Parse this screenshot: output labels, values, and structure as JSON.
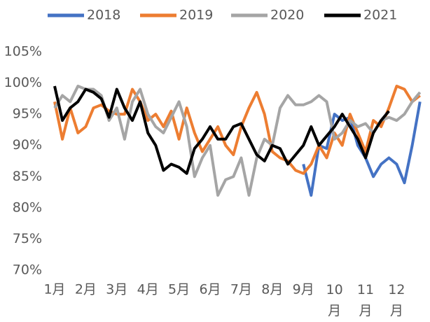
{
  "chart_data": {
    "type": "line",
    "categories": [
      "1月",
      null,
      null,
      null,
      "2月",
      null,
      null,
      null,
      "3月",
      null,
      null,
      null,
      "4月",
      null,
      null,
      null,
      "5月",
      null,
      null,
      null,
      "6月",
      null,
      null,
      null,
      "7月",
      null,
      null,
      null,
      "8月",
      null,
      null,
      null,
      "9月",
      null,
      null,
      null,
      "10月",
      null,
      null,
      null,
      "11月",
      null,
      null,
      null,
      "12月",
      null,
      null,
      null
    ],
    "series": [
      {
        "name": "2018",
        "color": "#4472c4",
        "values": [
          null,
          null,
          null,
          null,
          null,
          null,
          null,
          null,
          null,
          null,
          null,
          null,
          null,
          null,
          null,
          null,
          null,
          null,
          null,
          null,
          null,
          null,
          null,
          null,
          null,
          null,
          null,
          null,
          null,
          null,
          null,
          null,
          87,
          82,
          90,
          89.5,
          95,
          94,
          94.5,
          90,
          88,
          85,
          87,
          88,
          87,
          84,
          90,
          97
        ]
      },
      {
        "name": "2019",
        "color": "#ed7d31",
        "values": [
          97,
          91,
          96,
          92,
          93,
          96,
          96.5,
          95.5,
          95,
          95,
          99,
          97,
          94,
          95,
          93,
          95.5,
          91,
          96,
          92,
          89,
          91,
          93,
          90,
          88.5,
          93,
          96,
          98.5,
          95,
          89,
          88,
          87.5,
          86,
          85.5,
          87,
          90,
          88,
          92,
          90,
          95,
          92,
          89,
          94,
          93,
          96,
          99.5,
          99,
          97,
          98
        ]
      },
      {
        "name": "2020",
        "color": "#a5a5a5",
        "values": [
          96,
          98,
          97,
          99.5,
          99,
          99,
          98,
          94,
          96,
          91,
          97,
          99,
          95,
          93,
          92,
          94.5,
          97,
          93,
          85,
          88,
          90,
          82,
          84.5,
          85,
          88,
          82,
          88,
          91,
          90,
          96,
          98,
          96.5,
          96.5,
          97,
          98,
          97,
          91,
          92,
          94,
          93,
          93.5,
          92,
          94,
          94.5,
          94,
          95,
          97,
          98.5
        ]
      },
      {
        "name": "2021",
        "color": "#000000",
        "values": [
          99.5,
          94,
          96,
          97,
          99,
          98.5,
          97.5,
          94.5,
          99,
          96,
          94,
          97,
          92,
          90,
          86,
          87,
          86.5,
          85.5,
          89.5,
          91,
          93,
          91,
          91,
          93,
          93.5,
          91,
          88.5,
          87.5,
          90,
          89.5,
          87,
          88.5,
          90,
          93,
          90,
          91.5,
          93,
          95,
          93,
          91,
          88,
          92,
          94,
          95.5,
          null,
          null,
          null,
          null
        ]
      }
    ],
    "ylim": [
      70,
      105
    ],
    "yticks": [
      {
        "value": 70,
        "label": "70%"
      },
      {
        "value": 75,
        "label": "75%"
      },
      {
        "value": 80,
        "label": "80%"
      },
      {
        "value": 85,
        "label": "85%"
      },
      {
        "value": 90,
        "label": "90%"
      },
      {
        "value": 95,
        "label": "95%"
      },
      {
        "value": 100,
        "label": "100%"
      },
      {
        "value": 105,
        "label": "105%"
      }
    ]
  }
}
